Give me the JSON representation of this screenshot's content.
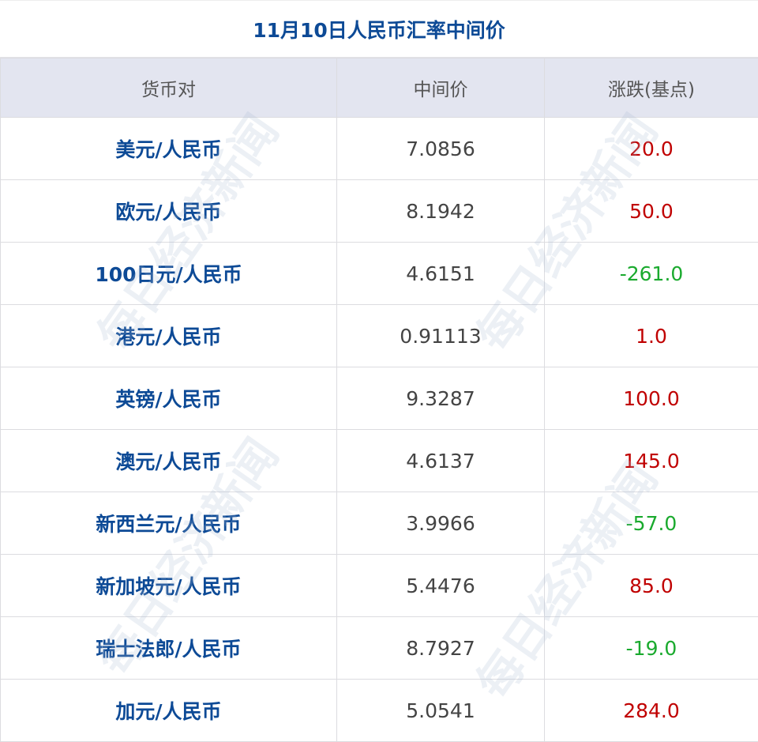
{
  "title": "11月10日人民币汇率中间价",
  "headers": [
    "货币对",
    "中间价",
    "涨跌(基点)"
  ],
  "rows": [
    {
      "pair": "美元/人民币",
      "mid": "7.0856",
      "change": "20.0"
    },
    {
      "pair": "欧元/人民币",
      "mid": "8.1942",
      "change": "50.0"
    },
    {
      "pair": "100日元/人民币",
      "mid": "4.6151",
      "change": "-261.0"
    },
    {
      "pair": "港元/人民币",
      "mid": "0.91113",
      "change": "1.0"
    },
    {
      "pair": "英镑/人民币",
      "mid": "9.3287",
      "change": "100.0"
    },
    {
      "pair": "澳元/人民币",
      "mid": "4.6137",
      "change": "145.0"
    },
    {
      "pair": "新西兰元/人民币",
      "mid": "3.9966",
      "change": "-57.0"
    },
    {
      "pair": "新加坡元/人民币",
      "mid": "5.4476",
      "change": "85.0"
    },
    {
      "pair": "瑞士法郎/人民币",
      "mid": "8.7927",
      "change": "-19.0"
    },
    {
      "pair": "加元/人民币",
      "mid": "5.0541",
      "change": "284.0"
    }
  ],
  "colors": {
    "up": "#c00000",
    "down": "#1aaa2e",
    "title": "#0d4a96",
    "header_bg": "#e3e5f0"
  },
  "watermark": "每日经济新闻"
}
